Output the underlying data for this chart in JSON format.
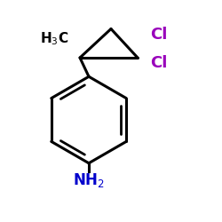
{
  "bg_color": "#ffffff",
  "bond_color": "#000000",
  "cl_color": "#9900bb",
  "nh2_color": "#0000cc",
  "h3c_color": "#000000",
  "line_width": 2.2,
  "inner_lw": 2.0
}
